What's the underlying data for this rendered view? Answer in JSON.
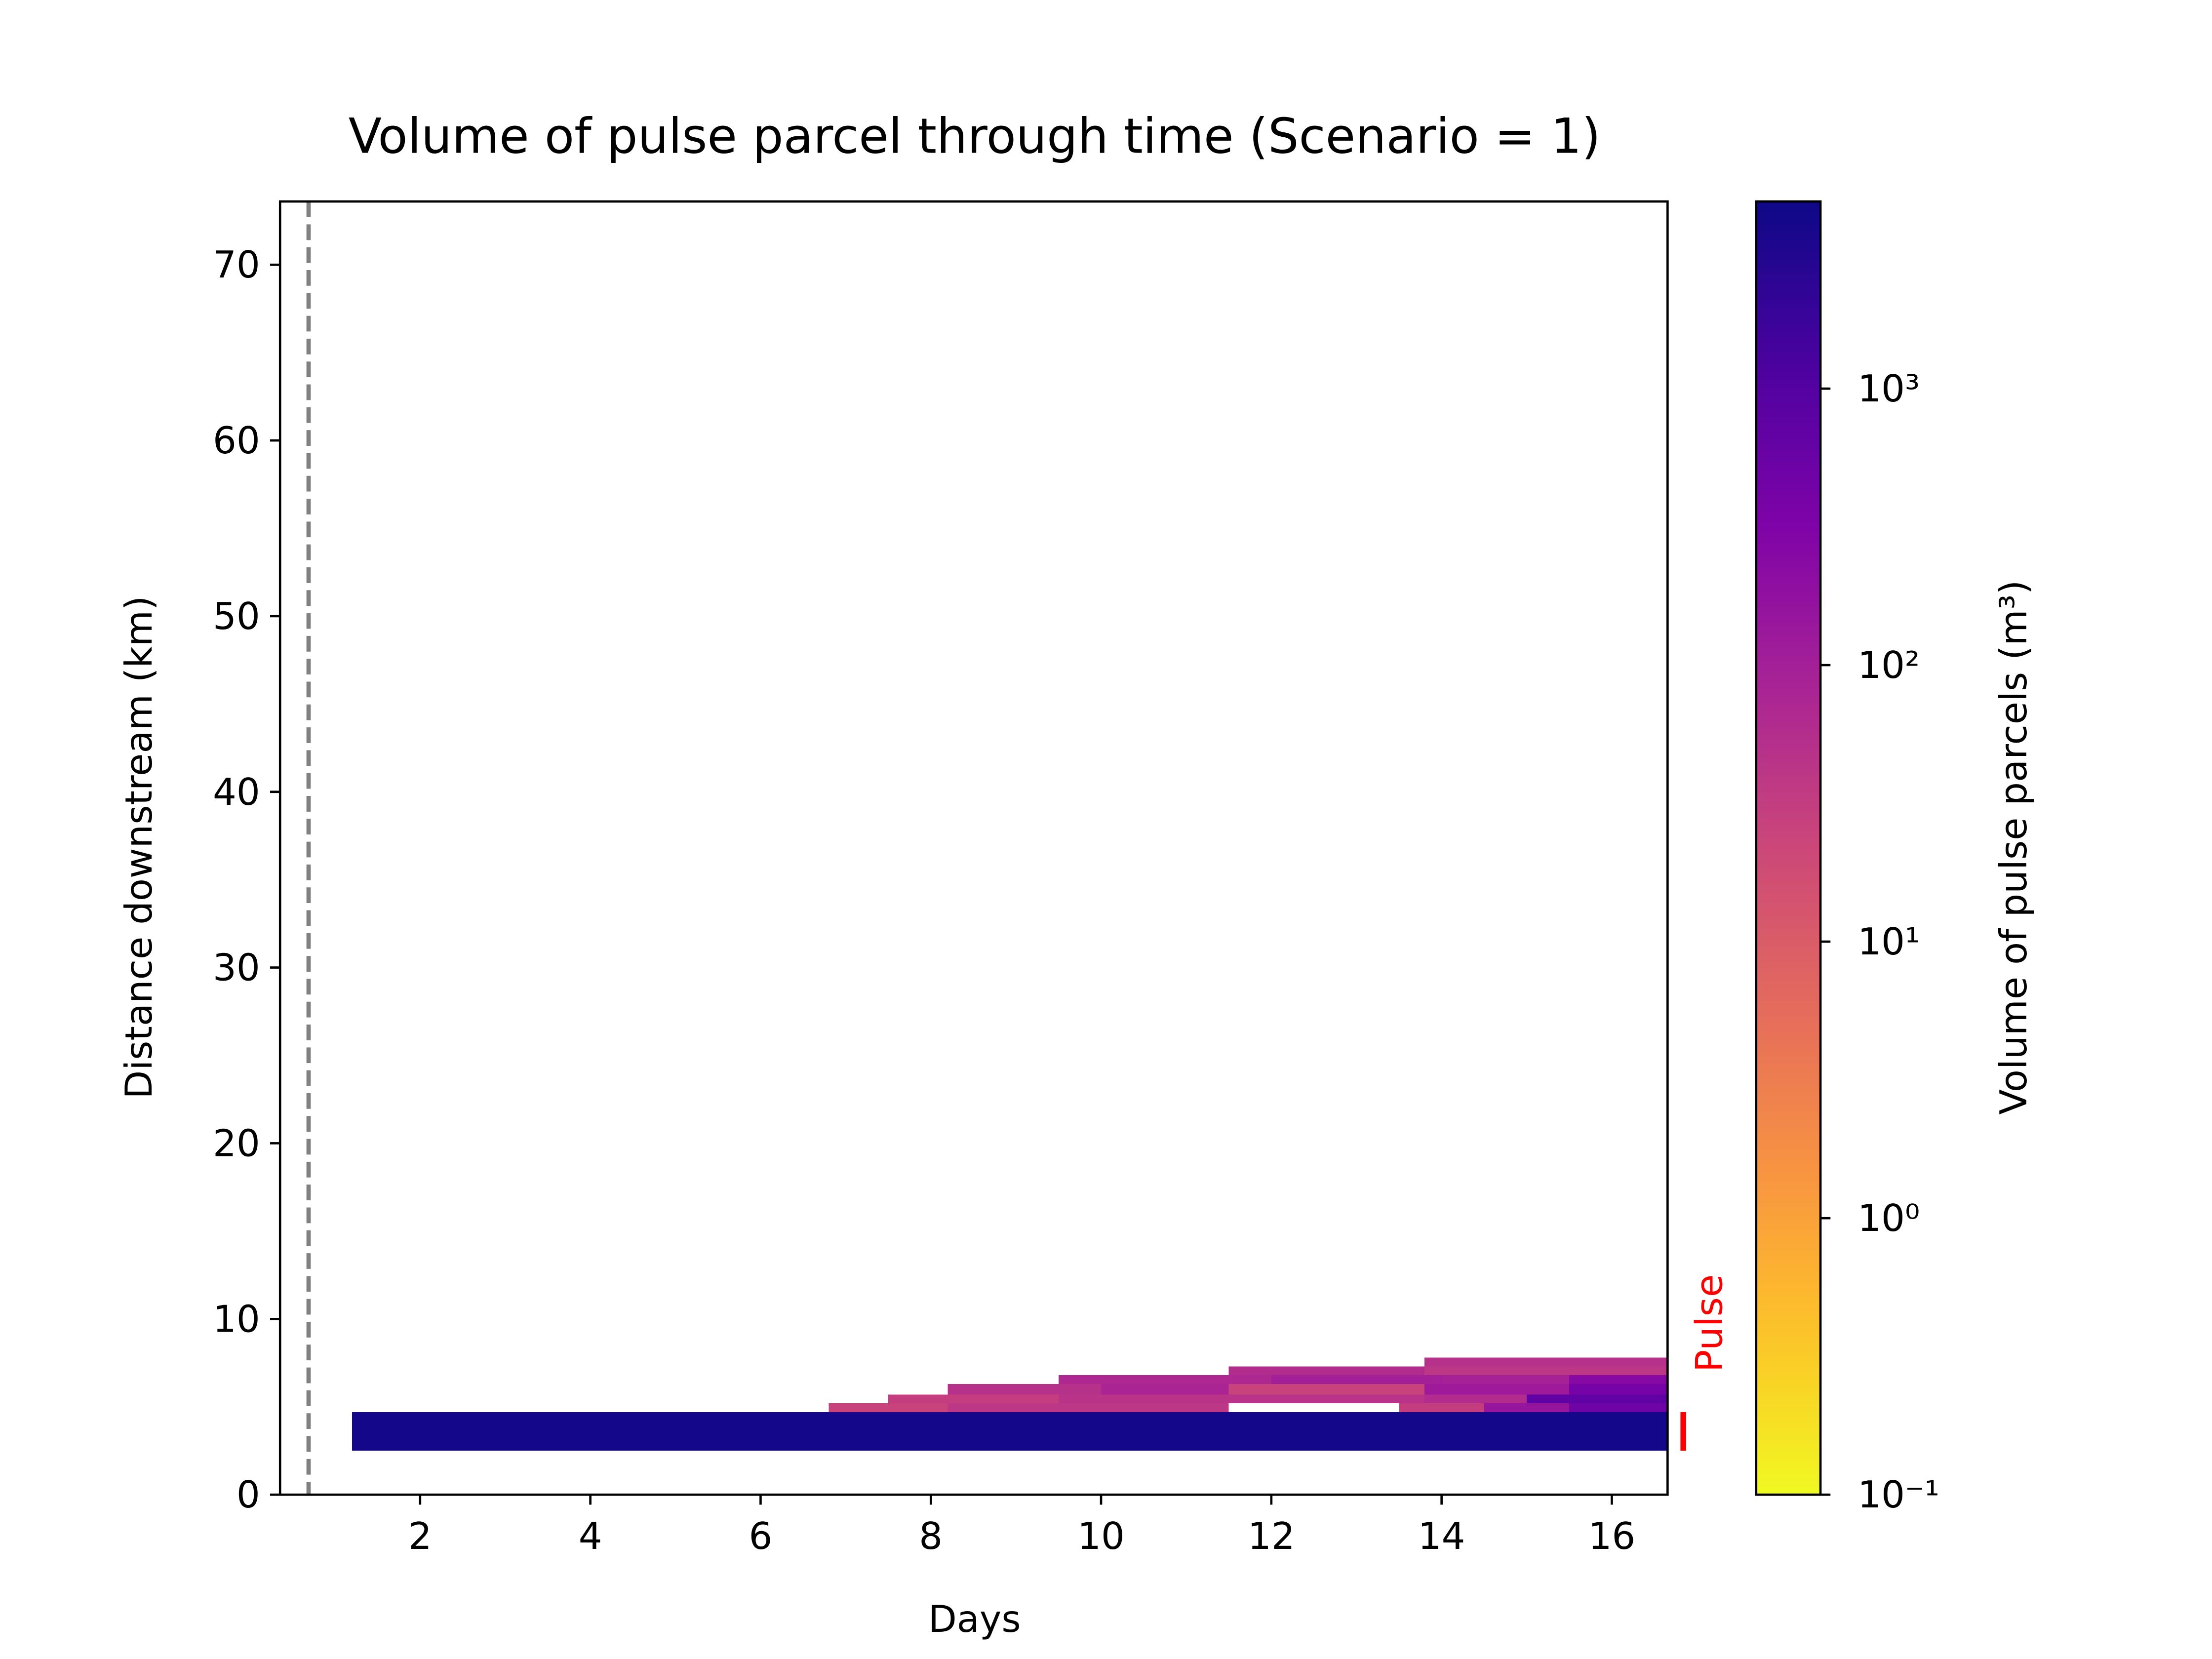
{
  "chart_data": {
    "type": "heatmap",
    "title": "Volume of pulse parcel through time (Scenario = 1)",
    "x_label": "Days",
    "y_label": "Distance downstream (km)",
    "colorbar_label": "Volume of pulse parcels (m³)",
    "annotation": "Pulse",
    "annotation_color": "#ff0000",
    "colormap": "plasma",
    "color_scale": "log",
    "clim": [
      0.1,
      4750
    ],
    "cticks": [
      {
        "value": 0.1,
        "label": "10⁻¹"
      },
      {
        "value": 1,
        "label": "10⁰"
      },
      {
        "value": 10,
        "label": "10¹"
      },
      {
        "value": 100,
        "label": "10²"
      },
      {
        "value": 1000,
        "label": "10³"
      }
    ],
    "xlim": [
      0.355,
      16.655
    ],
    "ylim": [
      0,
      73.6
    ],
    "xticks": [
      2,
      4,
      6,
      8,
      10,
      12,
      14,
      16
    ],
    "yticks": [
      0,
      10,
      20,
      30,
      40,
      50,
      60,
      70
    ],
    "vline": 0.69,
    "pulse_range": [
      2.5,
      4.7
    ],
    "cells": [
      {
        "x0": 1.2,
        "x1": 16.655,
        "y0": 2.5,
        "y1": 4.7,
        "value": 4000
      },
      {
        "x0": 6.8,
        "x1": 8.2,
        "y0": 4.7,
        "y1": 5.2,
        "value": 25
      },
      {
        "x0": 8.2,
        "x1": 11.5,
        "y0": 4.7,
        "y1": 5.2,
        "value": 40
      },
      {
        "x0": 13.5,
        "x1": 14.5,
        "y0": 4.7,
        "y1": 5.2,
        "value": 30
      },
      {
        "x0": 14.5,
        "x1": 15.5,
        "y0": 4.7,
        "y1": 5.2,
        "value": 150
      },
      {
        "x0": 15.5,
        "x1": 16.655,
        "y0": 4.7,
        "y1": 5.2,
        "value": 500
      },
      {
        "x0": 7.5,
        "x1": 9.5,
        "y0": 5.2,
        "y1": 5.7,
        "value": 30
      },
      {
        "x0": 9.5,
        "x1": 13.8,
        "y0": 5.2,
        "y1": 5.7,
        "value": 45
      },
      {
        "x0": 13.8,
        "x1": 15,
        "y0": 5.2,
        "y1": 5.7,
        "value": 60
      },
      {
        "x0": 15,
        "x1": 16.655,
        "y0": 5.2,
        "y1": 5.7,
        "value": 700
      },
      {
        "x0": 8.2,
        "x1": 10,
        "y0": 5.7,
        "y1": 6.3,
        "value": 50
      },
      {
        "x0": 10,
        "x1": 11.5,
        "y0": 5.7,
        "y1": 6.3,
        "value": 80
      },
      {
        "x0": 11.5,
        "x1": 13.8,
        "y0": 5.7,
        "y1": 6.3,
        "value": 25
      },
      {
        "x0": 13.8,
        "x1": 15.5,
        "y0": 5.7,
        "y1": 6.3,
        "value": 120
      },
      {
        "x0": 15.5,
        "x1": 16.655,
        "y0": 5.7,
        "y1": 6.3,
        "value": 400
      },
      {
        "x0": 9.5,
        "x1": 12,
        "y0": 6.3,
        "y1": 6.8,
        "value": 70
      },
      {
        "x0": 12,
        "x1": 14,
        "y0": 6.3,
        "y1": 6.8,
        "value": 100
      },
      {
        "x0": 14,
        "x1": 15.5,
        "y0": 6.3,
        "y1": 6.8,
        "value": 90
      },
      {
        "x0": 15.5,
        "x1": 16.655,
        "y0": 6.3,
        "y1": 6.8,
        "value": 250
      },
      {
        "x0": 11.5,
        "x1": 13.8,
        "y0": 6.8,
        "y1": 7.3,
        "value": 60
      },
      {
        "x0": 13.8,
        "x1": 16.655,
        "y0": 6.8,
        "y1": 7.3,
        "value": 40
      },
      {
        "x0": 13.8,
        "x1": 16.655,
        "y0": 7.3,
        "y1": 7.8,
        "value": 50
      }
    ]
  }
}
